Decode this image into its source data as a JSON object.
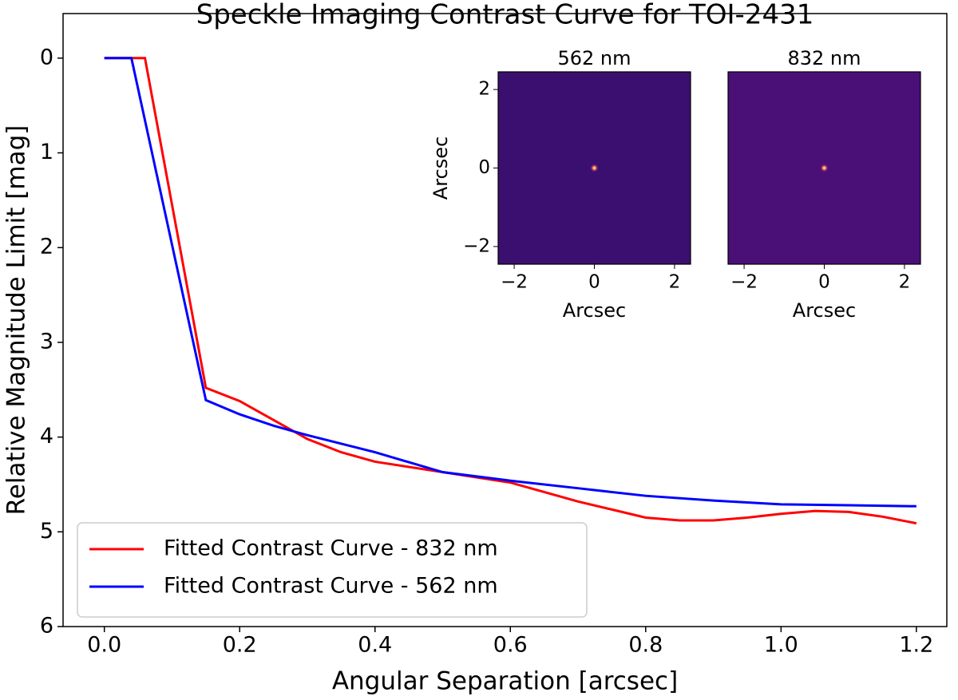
{
  "chart_data": [
    {
      "type": "line",
      "title": "Speckle Imaging Contrast Curve for TOI-2431",
      "x_label": "Angular Separation [arcsec]",
      "y_label": "Relative Magnitude Limit [mag]",
      "xlim": [
        -0.061,
        1.245
      ],
      "ylim": [
        -0.47,
        6
      ],
      "invert_y": true,
      "xticks": [
        {
          "value": 0,
          "label": "0.0"
        },
        0.2,
        0.4,
        0.6,
        0.8,
        {
          "value": 1,
          "label": "1.0"
        },
        1.2
      ],
      "yticks": [
        0,
        1,
        2,
        3,
        4,
        5,
        6
      ],
      "legend": "lower left",
      "series": [
        {
          "name": "Fitted Contrast Curve - 832 nm",
          "color": "#ff0000",
          "x": [
            0,
            0.06,
            0.15,
            0.2,
            0.25,
            0.3,
            0.35,
            0.4,
            0.5,
            0.6,
            0.7,
            0.8,
            0.85,
            0.9,
            0.95,
            1.0,
            1.05,
            1.1,
            1.15,
            1.2
          ],
          "values": [
            0,
            0,
            3.48,
            3.62,
            3.82,
            4.02,
            4.16,
            4.26,
            4.37,
            4.48,
            4.68,
            4.85,
            4.88,
            4.88,
            4.85,
            4.81,
            4.78,
            4.79,
            4.84,
            4.91
          ]
        },
        {
          "name": "Fitted Contrast Curve - 562 nm",
          "color": "#0000ff",
          "x": [
            0,
            0.04,
            0.15,
            0.2,
            0.25,
            0.3,
            0.4,
            0.5,
            0.6,
            0.7,
            0.8,
            0.9,
            1.0,
            1.1,
            1.2
          ],
          "values": [
            0,
            0,
            3.61,
            3.76,
            3.88,
            3.98,
            4.16,
            4.37,
            4.46,
            4.54,
            4.62,
            4.67,
            4.71,
            4.72,
            4.73
          ]
        }
      ]
    },
    {
      "type": "image",
      "title": "562 nm",
      "x_label": "Arcsec",
      "y_label": "Arcsec",
      "color": "#3b0f6f",
      "xlim": [
        -2.4,
        2.4
      ],
      "ylim": [
        -2.45,
        2.45
      ],
      "xticks": [
        {
          "value": -2,
          "label": "−2"
        },
        0,
        2
      ],
      "yticks": [
        {
          "value": -2,
          "label": "−2"
        },
        0,
        2
      ]
    },
    {
      "type": "image",
      "title": "832 nm",
      "x_label": "Arcsec",
      "color": "#4b0f78",
      "xlim": [
        -2.4,
        2.4
      ],
      "ylim": [
        -2.45,
        2.45
      ],
      "xticks": [
        {
          "value": -2,
          "label": "−2"
        },
        0,
        2
      ]
    }
  ]
}
